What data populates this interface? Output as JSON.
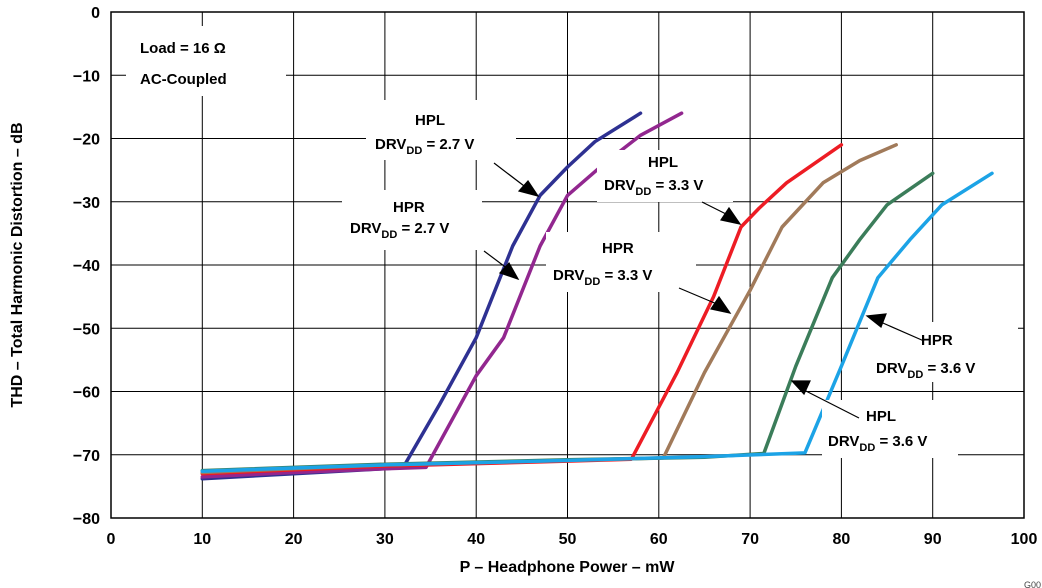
{
  "chart_data": {
    "type": "line",
    "xlabel": "P – Headphone Power – mW",
    "ylabel": "THD – Total Harmonic Distortion – dB",
    "xlim": [
      0,
      100
    ],
    "ylim": [
      -80,
      0
    ],
    "xticks": [
      0,
      10,
      20,
      30,
      40,
      50,
      60,
      70,
      80,
      90,
      100
    ],
    "yticks": [
      0,
      -10,
      -20,
      -30,
      -40,
      -50,
      -60,
      -70,
      -80
    ],
    "x_tick_labels": [
      "0",
      "10",
      "20",
      "30",
      "40",
      "50",
      "60",
      "70",
      "80",
      "90",
      "100"
    ],
    "y_tick_labels": [
      "0",
      "−10",
      "−20",
      "−30",
      "−40",
      "−50",
      "−60",
      "−70",
      "−80"
    ],
    "grid": true,
    "legend_box": {
      "line1": "Load = 16 Ω",
      "line2": "AC-Coupled"
    },
    "corner_text": "G00",
    "series": [
      {
        "name": "HPL DRVDD = 2.7 V",
        "color": "#2e3192",
        "x": [
          10,
          20,
          30,
          32,
          36,
          40,
          44,
          47,
          50,
          53,
          58
        ],
        "y": [
          -73.8,
          -73.0,
          -72.2,
          -72.0,
          -62,
          -51.5,
          -37,
          -29,
          -24.5,
          -20.5,
          -16
        ]
      },
      {
        "name": "HPR DRVDD = 2.7 V",
        "color": "#92278f",
        "x": [
          10,
          20,
          30,
          34.5,
          40,
          43,
          47,
          50,
          54,
          58,
          62.5
        ],
        "y": [
          -73.5,
          -72.8,
          -72.2,
          -72.0,
          -57.5,
          -51.5,
          -37,
          -29,
          -24,
          -19.5,
          -16
        ]
      },
      {
        "name": "HPL DRVDD = 3.3 V",
        "color": "#ed1c24",
        "x": [
          10,
          30,
          50,
          57,
          62,
          66,
          69,
          71,
          74,
          77,
          80
        ],
        "y": [
          -73.0,
          -71.8,
          -71.0,
          -70.7,
          -57,
          -45,
          -34,
          -31,
          -27,
          -24,
          -21
        ]
      },
      {
        "name": "HPR DRVDD = 3.3 V",
        "color": "#a17a5a",
        "x": [
          10,
          30,
          50,
          60.5,
          65,
          70,
          73.5,
          78,
          82,
          86
        ],
        "y": [
          -72.8,
          -71.6,
          -70.9,
          -70.5,
          -57,
          -44,
          -34,
          -27,
          -23.5,
          -21
        ]
      },
      {
        "name": "HPL DRVDD = 3.6 V",
        "color": "#3b7d5a",
        "x": [
          10,
          30,
          50,
          65,
          71.5,
          75,
          79,
          82,
          85,
          90
        ],
        "y": [
          -72.5,
          -71.5,
          -70.8,
          -70.4,
          -69.8,
          -56,
          -42,
          -36,
          -30.5,
          -25.5
        ]
      },
      {
        "name": "HPR DRVDD = 3.6 V",
        "color": "#1ca3e6",
        "x": [
          10,
          30,
          50,
          65,
          76,
          80,
          84,
          87.5,
          91,
          96.5
        ],
        "y": [
          -72.6,
          -71.6,
          -70.9,
          -70.3,
          -69.7,
          -56,
          -42,
          -36,
          -30.5,
          -25.5
        ]
      }
    ],
    "annotations": [
      {
        "id": "hpl27",
        "line1": "HPL",
        "main": "DRV",
        "sub": "DD",
        "post": " = 2.7 V"
      },
      {
        "id": "hpr27",
        "line1": "HPR",
        "main": "DRV",
        "sub": "DD",
        "post": " = 2.7 V"
      },
      {
        "id": "hpl33",
        "line1": "HPL",
        "main": "DRV",
        "sub": "DD",
        "post": " = 3.3 V"
      },
      {
        "id": "hpr33",
        "line1": "HPR",
        "main": "DRV",
        "sub": "DD",
        "post": " = 3.3 V"
      },
      {
        "id": "hpr36",
        "line1": "HPR",
        "main": "DRV",
        "sub": "DD",
        "post": " = 3.6 V"
      },
      {
        "id": "hpl36",
        "line1": "HPL",
        "main": "DRV",
        "sub": "DD",
        "post": " = 3.6 V"
      }
    ]
  }
}
